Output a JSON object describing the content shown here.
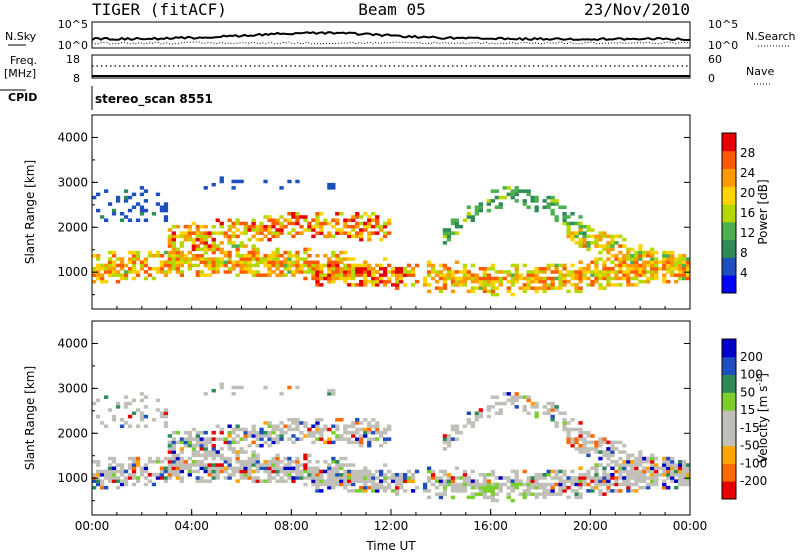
{
  "header": {
    "station": "TIGER (fitACF)",
    "beam": "Beam 05",
    "date": "23/Nov/2010"
  },
  "strip": {
    "nsky_label": "N.Sky",
    "nsky_ticks": [
      "10^5",
      "10^0"
    ],
    "nsearch_label": "N.Search",
    "nsearch_ticks": [
      "10^5",
      "10^0"
    ],
    "freq_label": "Freq.",
    "freq_unit": "[MHz]",
    "freq_ticks": [
      "18",
      "8"
    ],
    "nave_label": "Nave",
    "nave_ticks": [
      "60",
      "0"
    ],
    "cpid_label": "CPID",
    "cpid_value": "stereo_scan 8551"
  },
  "colors": {
    "power_scale": [
      "#0000ff",
      "#1f4fbf",
      "#2e8b57",
      "#4caf50",
      "#b6d800",
      "#ffd200",
      "#ff9a00",
      "#ff5a00",
      "#e60000"
    ],
    "velocity_scale": [
      "#e60000",
      "#ff6a00",
      "#ffa500",
      "#c0c0b8",
      "#c0c0b8",
      "#7ccd2e",
      "#2e8b57",
      "#1f4fbf",
      "#0000cc"
    ],
    "ground_scatter": "#c0c0b8"
  },
  "chart_data": [
    {
      "type": "heatmap",
      "parameter": "Power",
      "ylabel": "Slant Range [km]",
      "ylim": [
        180,
        4500
      ],
      "yticks": [
        "1000",
        "2000",
        "3000",
        "4000"
      ],
      "xlim": [
        0,
        24
      ],
      "colorbar_label": "Power [dB]",
      "colorbar_ticks": [
        "4",
        "8",
        "12",
        "16",
        "20",
        "24",
        "28"
      ],
      "colorbar_range": [
        0,
        30
      ]
    },
    {
      "type": "heatmap",
      "parameter": "Velocity",
      "ylabel": "Slant Range [km]",
      "ylim": [
        180,
        4500
      ],
      "yticks": [
        "1000",
        "2000",
        "3000",
        "4000"
      ],
      "xlim": [
        0,
        24
      ],
      "xlabel": "Time UT",
      "xticks": [
        "00:00",
        "04:00",
        "08:00",
        "12:00",
        "16:00",
        "20:00",
        "00:00"
      ],
      "colorbar_label": "Velocity [m s",
      "colorbar_unit_exp": "-1",
      "colorbar_unit_close": "]",
      "colorbar_ticks": [
        "-200",
        "-100",
        "-50",
        "-15",
        "15",
        "50",
        "100",
        "200"
      ]
    }
  ]
}
